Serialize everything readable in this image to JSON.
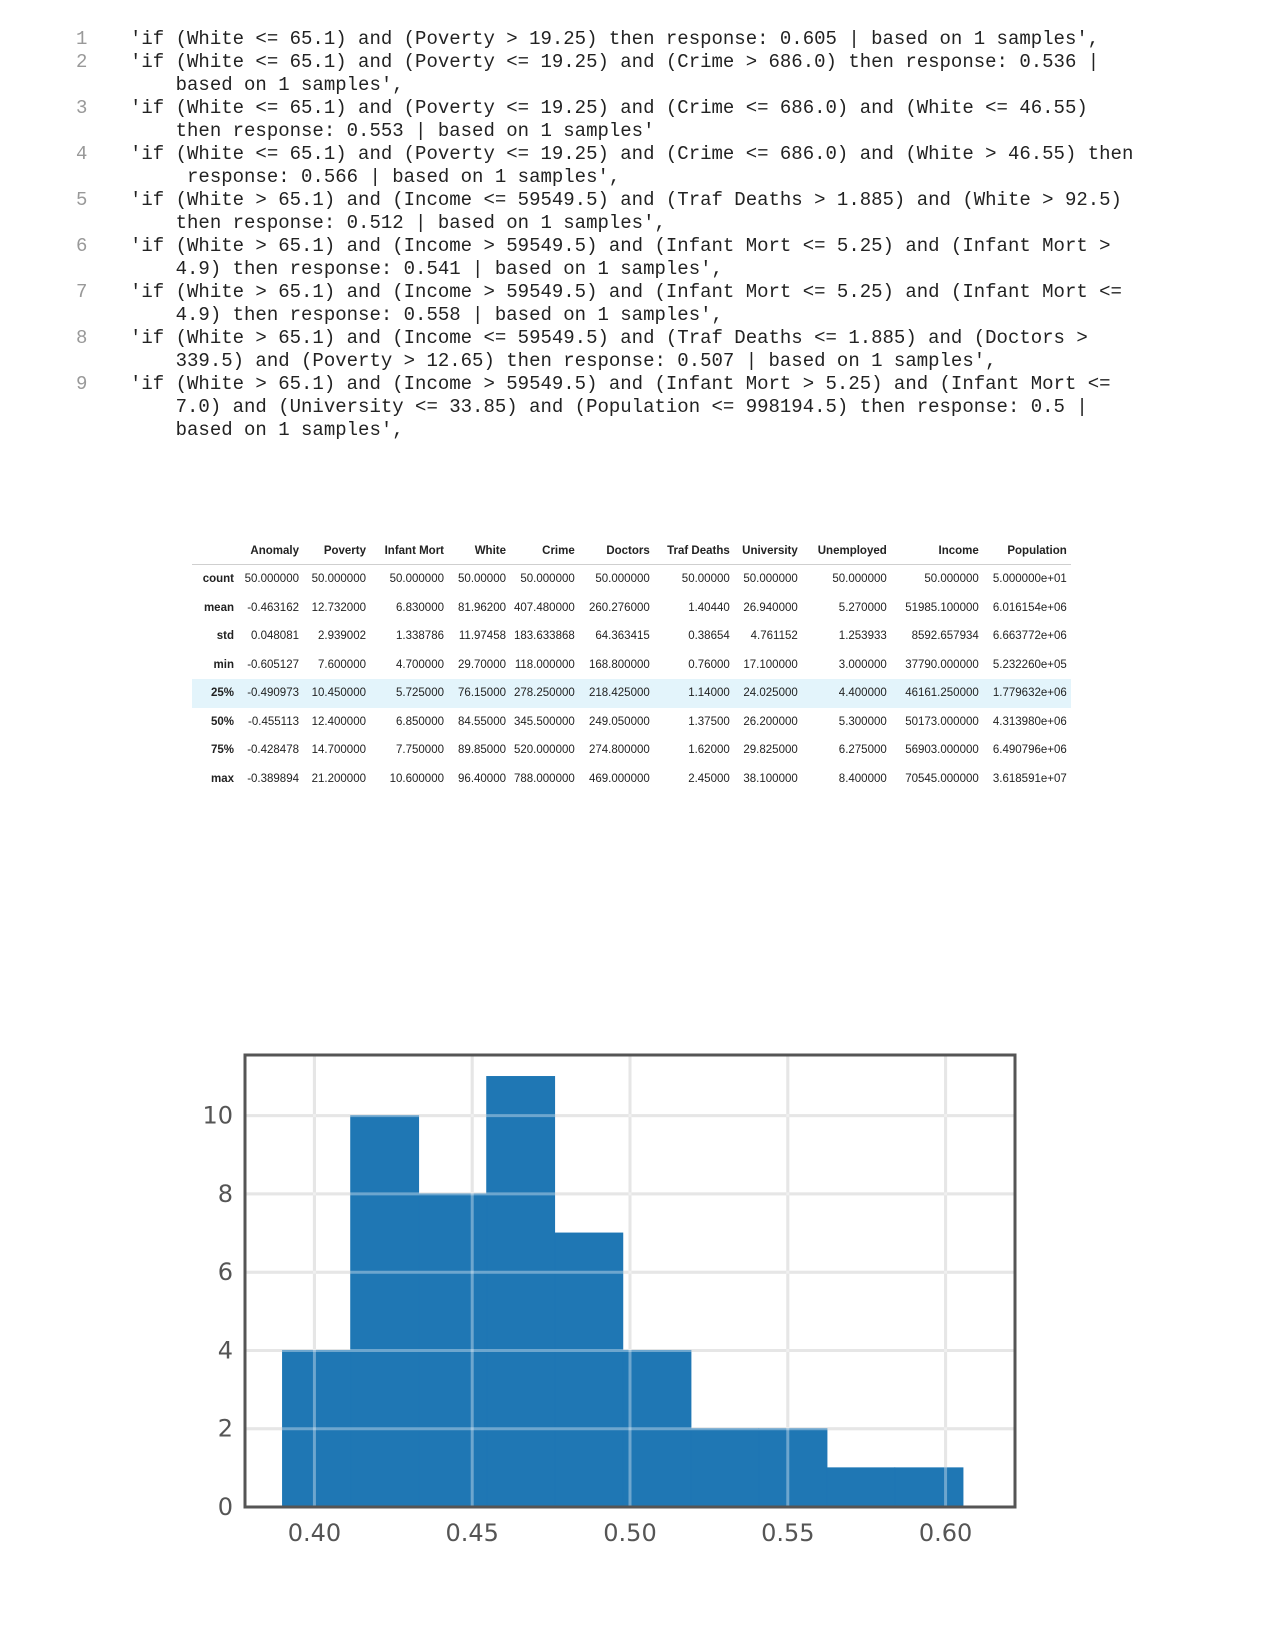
{
  "code": {
    "lines": [
      {
        "no": "1",
        "text": "'if (White <= 65.1) and (Poverty > 19.25) then response: 0.605 | based on 1 samples',"
      },
      {
        "no": "2",
        "text": "'if (White <= 65.1) and (Poverty <= 19.25) and (Crime > 686.0) then response: 0.536 |\n    based on 1 samples',"
      },
      {
        "no": "3",
        "text": "'if (White <= 65.1) and (Poverty <= 19.25) and (Crime <= 686.0) and (White <= 46.55)\n    then response: 0.553 | based on 1 samples'"
      },
      {
        "no": "4",
        "text": "'if (White <= 65.1) and (Poverty <= 19.25) and (Crime <= 686.0) and (White > 46.55) then\n     response: 0.566 | based on 1 samples',"
      },
      {
        "no": "5",
        "text": "'if (White > 65.1) and (Income <= 59549.5) and (Traf Deaths > 1.885) and (White > 92.5)\n    then response: 0.512 | based on 1 samples',"
      },
      {
        "no": "6",
        "text": "'if (White > 65.1) and (Income > 59549.5) and (Infant Mort <= 5.25) and (Infant Mort >\n    4.9) then response: 0.541 | based on 1 samples',"
      },
      {
        "no": "7",
        "text": "'if (White > 65.1) and (Income > 59549.5) and (Infant Mort <= 5.25) and (Infant Mort <=\n    4.9) then response: 0.558 | based on 1 samples',"
      },
      {
        "no": "8",
        "text": "'if (White > 65.1) and (Income <= 59549.5) and (Traf Deaths <= 1.885) and (Doctors >\n    339.5) and (Poverty > 12.65) then response: 0.507 | based on 1 samples',"
      },
      {
        "no": "9",
        "text": "'if (White > 65.1) and (Income > 59549.5) and (Infant Mort > 5.25) and (Infant Mort <=\n    7.0) and (University <= 33.85) and (Population <= 998194.5) then response: 0.5 |\n    based on 1 samples',"
      }
    ]
  },
  "table": {
    "columns": [
      "Anomaly",
      "Poverty",
      "Infant Mort",
      "White",
      "Crime",
      "Doctors",
      "Traf Deaths",
      "University",
      "Unemployed",
      "Income",
      "Population"
    ],
    "rows": [
      {
        "label": "count",
        "cells": [
          "50.000000",
          "50.000000",
          "50.000000",
          "50.00000",
          "50.000000",
          "50.000000",
          "50.00000",
          "50.000000",
          "50.000000",
          "50.000000",
          "5.000000e+01"
        ]
      },
      {
        "label": "mean",
        "cells": [
          "-0.463162",
          "12.732000",
          "6.830000",
          "81.96200",
          "407.480000",
          "260.276000",
          "1.40440",
          "26.940000",
          "5.270000",
          "51985.100000",
          "6.016154e+06"
        ]
      },
      {
        "label": "std",
        "cells": [
          "0.048081",
          "2.939002",
          "1.338786",
          "11.97458",
          "183.633868",
          "64.363415",
          "0.38654",
          "4.761152",
          "1.253933",
          "8592.657934",
          "6.663772e+06"
        ]
      },
      {
        "label": "min",
        "cells": [
          "-0.605127",
          "7.600000",
          "4.700000",
          "29.70000",
          "118.000000",
          "168.800000",
          "0.76000",
          "17.100000",
          "3.000000",
          "37790.000000",
          "5.232260e+05"
        ]
      },
      {
        "label": "25%",
        "cells": [
          "-0.490973",
          "10.450000",
          "5.725000",
          "76.15000",
          "278.250000",
          "218.425000",
          "1.14000",
          "24.025000",
          "4.400000",
          "46161.250000",
          "1.779632e+06"
        ]
      },
      {
        "label": "50%",
        "cells": [
          "-0.455113",
          "12.400000",
          "6.850000",
          "84.55000",
          "345.500000",
          "249.050000",
          "1.37500",
          "26.200000",
          "5.300000",
          "50173.000000",
          "4.313980e+06"
        ]
      },
      {
        "label": "75%",
        "cells": [
          "-0.428478",
          "14.700000",
          "7.750000",
          "89.85000",
          "520.000000",
          "274.800000",
          "1.62000",
          "29.825000",
          "6.275000",
          "56903.000000",
          "6.490796e+06"
        ]
      },
      {
        "label": "max",
        "cells": [
          "-0.389894",
          "21.200000",
          "10.600000",
          "96.40000",
          "788.000000",
          "469.000000",
          "2.45000",
          "38.100000",
          "8.400000",
          "70545.000000",
          "3.618591e+07"
        ]
      }
    ]
  },
  "chart_data": {
    "type": "bar",
    "bin_edges": [
      0.3899,
      0.4115,
      0.433,
      0.4546,
      0.4761,
      0.4977,
      0.5193,
      0.5408,
      0.5624,
      0.5839,
      0.6055
    ],
    "counts": [
      4,
      10,
      8,
      11,
      7,
      4,
      2,
      2,
      1,
      1
    ],
    "xlim": [
      0.378,
      0.622
    ],
    "ylim": [
      0,
      11.55
    ],
    "xticks": [
      0.4,
      0.45,
      0.5,
      0.55,
      0.6
    ],
    "xtick_labels": [
      "0.40",
      "0.45",
      "0.50",
      "0.55",
      "0.60"
    ],
    "yticks": [
      0,
      2,
      4,
      6,
      8,
      10
    ],
    "ytick_labels": [
      "0",
      "2",
      "4",
      "6",
      "8",
      "10"
    ],
    "grid": true,
    "bar_color": "#1f77b4",
    "title": "",
    "xlabel": "",
    "ylabel": ""
  }
}
